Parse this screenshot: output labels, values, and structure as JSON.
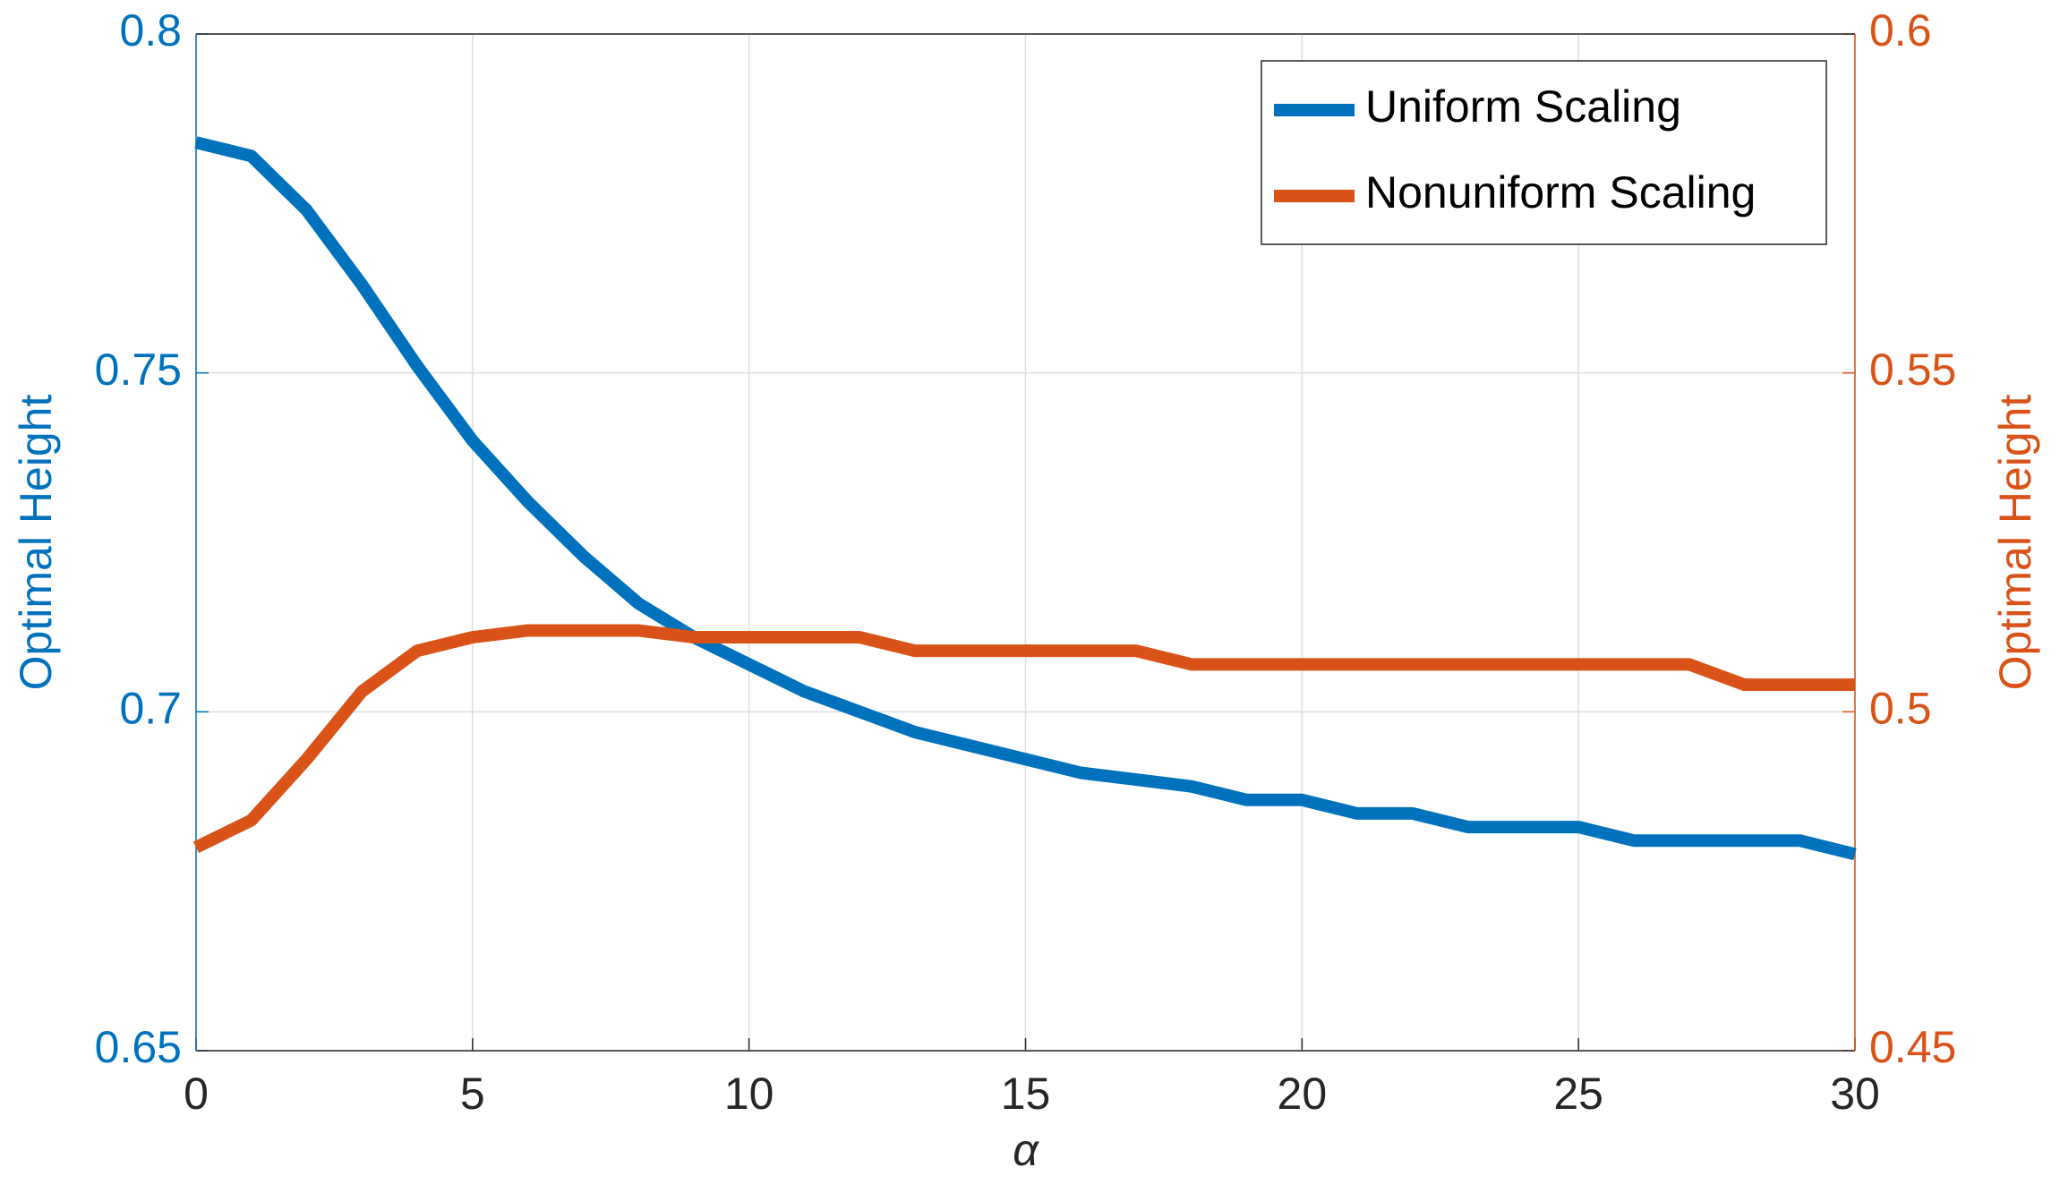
{
  "chart_data": {
    "type": "line",
    "x_label": "α",
    "y_label": "Optimal Height",
    "y2_label": "Optimal Height",
    "x": [
      0,
      1,
      2,
      3,
      4,
      5,
      6,
      7,
      8,
      9,
      10,
      11,
      12,
      13,
      14,
      15,
      16,
      17,
      18,
      19,
      20,
      21,
      22,
      23,
      24,
      25,
      26,
      27,
      28,
      29,
      30
    ],
    "series": [
      {
        "name": "Uniform Scaling",
        "color": "#0072BD",
        "axis": "y",
        "values": [
          0.784,
          0.782,
          0.774,
          0.763,
          0.751,
          0.74,
          0.731,
          0.723,
          0.716,
          0.711,
          0.707,
          0.703,
          0.7,
          0.697,
          0.695,
          0.693,
          0.691,
          0.69,
          0.689,
          0.687,
          0.687,
          0.685,
          0.685,
          0.683,
          0.683,
          0.683,
          0.681,
          0.681,
          0.681,
          0.681,
          0.679
        ]
      },
      {
        "name": "Nonuniform Scaling",
        "color": "#D95319",
        "axis": "y2",
        "values": [
          0.48,
          0.484,
          0.493,
          0.503,
          0.509,
          0.511,
          0.512,
          0.512,
          0.512,
          0.511,
          0.511,
          0.511,
          0.511,
          0.509,
          0.509,
          0.509,
          0.509,
          0.509,
          0.507,
          0.507,
          0.507,
          0.507,
          0.507,
          0.507,
          0.507,
          0.507,
          0.507,
          0.507,
          0.504,
          0.504,
          0.504
        ]
      }
    ],
    "xlim": [
      0,
      30
    ],
    "xticks": [
      0,
      5,
      10,
      15,
      20,
      25,
      30
    ],
    "ylim": [
      0.65,
      0.8
    ],
    "yticks": [
      0.65,
      0.7,
      0.75,
      0.8
    ],
    "y2lim": [
      0.45,
      0.6
    ],
    "y2ticks": [
      0.45,
      0.5,
      0.55,
      0.6
    ],
    "grid": true,
    "legend": "northeast"
  }
}
